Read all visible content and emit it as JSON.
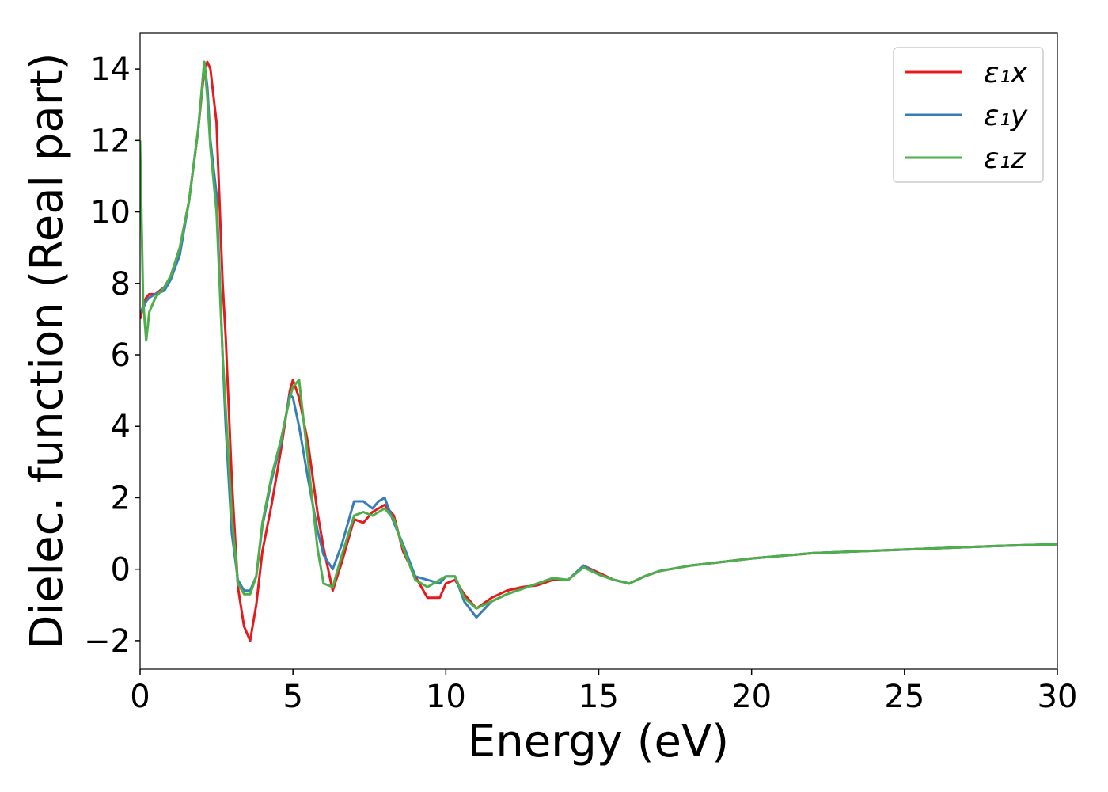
{
  "chart_data": {
    "type": "line",
    "xlabel": "Energy (eV)",
    "ylabel": "Dielec. function (Real part)",
    "x": [
      0,
      0.1,
      0.2,
      0.3,
      0.5,
      0.8,
      1.0,
      1.3,
      1.6,
      1.9,
      2.1,
      2.2,
      2.3,
      2.5,
      2.7,
      2.8,
      3.0,
      3.2,
      3.4,
      3.6,
      3.8,
      4.0,
      4.3,
      4.6,
      4.9,
      5.0,
      5.2,
      5.5,
      5.8,
      6.0,
      6.3,
      6.6,
      7.0,
      7.3,
      7.6,
      7.8,
      8.0,
      8.3,
      8.6,
      9.0,
      9.4,
      9.8,
      10.0,
      10.3,
      10.6,
      11.0,
      11.5,
      12.0,
      12.5,
      13.0,
      13.5,
      14.0,
      14.5,
      15.0,
      15.5,
      16.0,
      16.5,
      17.0,
      18,
      20,
      22,
      25,
      28,
      30
    ],
    "series": [
      {
        "name": "ε₁x",
        "color": "#e41a1c",
        "values": [
          7.0,
          7.4,
          7.6,
          7.7,
          7.7,
          7.9,
          8.2,
          9.0,
          10.3,
          12.3,
          14.0,
          14.2,
          14.0,
          12.5,
          8.0,
          6.5,
          2.5,
          -0.5,
          -1.6,
          -2.0,
          -1.0,
          0.5,
          1.8,
          3.3,
          5.0,
          5.3,
          4.8,
          3.5,
          1.6,
          0.6,
          -0.6,
          0.2,
          1.4,
          1.3,
          1.6,
          1.7,
          1.8,
          1.5,
          0.5,
          -0.2,
          -0.8,
          -0.8,
          -0.4,
          -0.3,
          -0.7,
          -1.1,
          -0.8,
          -0.6,
          -0.5,
          -0.45,
          -0.3,
          -0.3,
          0.1,
          -0.1,
          -0.3,
          -0.4,
          -0.2,
          -0.05,
          0.1,
          0.3,
          0.45,
          0.55,
          0.65,
          0.7
        ]
      },
      {
        "name": "ε₁y",
        "color": "#377eb8",
        "values": [
          7.2,
          7.3,
          7.5,
          7.6,
          7.7,
          7.8,
          8.1,
          8.8,
          10.3,
          12.3,
          14.2,
          13.5,
          12.0,
          10.5,
          6.0,
          4.0,
          1.0,
          -0.3,
          -0.6,
          -0.6,
          -0.2,
          1.2,
          2.5,
          3.5,
          4.9,
          4.8,
          4.0,
          2.5,
          1.1,
          0.4,
          0.0,
          0.7,
          1.9,
          1.9,
          1.7,
          1.9,
          2.0,
          1.3,
          0.7,
          -0.2,
          -0.3,
          -0.4,
          -0.2,
          -0.2,
          -0.9,
          -1.35,
          -0.9,
          -0.7,
          -0.55,
          -0.4,
          -0.25,
          -0.3,
          0.1,
          -0.15,
          -0.3,
          -0.4,
          -0.2,
          -0.05,
          0.1,
          0.3,
          0.45,
          0.55,
          0.65,
          0.7
        ]
      },
      {
        "name": "ε₁z",
        "color": "#4daf4a",
        "values": [
          12.0,
          7.5,
          6.4,
          7.2,
          7.6,
          7.9,
          8.2,
          9.0,
          10.3,
          12.3,
          14.2,
          13.2,
          11.8,
          10.0,
          6.0,
          4.5,
          1.5,
          -0.4,
          -0.7,
          -0.7,
          -0.2,
          1.3,
          2.6,
          3.6,
          4.8,
          5.1,
          5.3,
          3.0,
          0.6,
          -0.4,
          -0.5,
          0.4,
          1.5,
          1.6,
          1.5,
          1.6,
          1.7,
          1.4,
          0.6,
          -0.3,
          -0.5,
          -0.3,
          -0.2,
          -0.2,
          -0.8,
          -1.1,
          -0.9,
          -0.7,
          -0.55,
          -0.4,
          -0.25,
          -0.3,
          0.05,
          -0.15,
          -0.3,
          -0.4,
          -0.2,
          -0.05,
          0.1,
          0.3,
          0.45,
          0.55,
          0.65,
          0.7
        ]
      }
    ],
    "xlim": [
      0,
      30
    ],
    "xticks": [
      0,
      5,
      10,
      15,
      20,
      25,
      30
    ],
    "ylim": [
      -2.8,
      15
    ],
    "yticks": [
      {
        "value": -2,
        "label": "−2"
      },
      0,
      2,
      4,
      6,
      8,
      10,
      12,
      14
    ],
    "legend": "upper right",
    "grid": false
  }
}
